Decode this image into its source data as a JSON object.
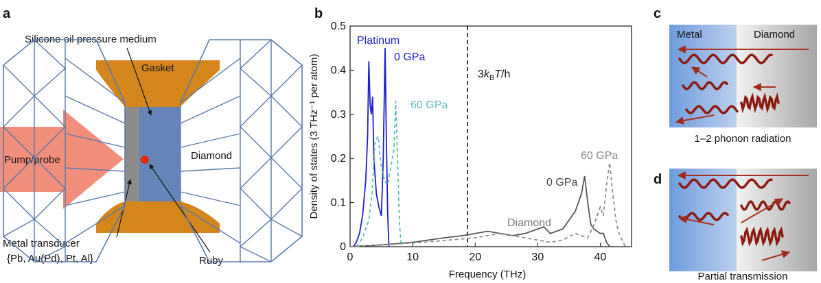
{
  "panel_labels": [
    "a",
    "b",
    "c",
    "d"
  ],
  "panel_a": {
    "medium": "Silicone oil pressure medium",
    "gasket": "Gasket",
    "beam": "Pump/probe",
    "anvil": "Diamond",
    "transducer": "Metal transducer",
    "transducer_options": "{Pb, Au(Pd), Pt, Al}",
    "ruby": "Ruby"
  },
  "panel_c": {
    "left": "Metal",
    "right": "Diamond",
    "caption": "1–2 phonon radiation"
  },
  "panel_d": {
    "caption": "Partial transmission"
  },
  "chart_data": {
    "type": "line",
    "xlabel": "Frequency (THz)",
    "ylabel": "Density of states (3 THz⁻¹ per atom)",
    "xlim": [
      0,
      45
    ],
    "ylim": [
      0,
      0.5
    ],
    "xticks": [
      0,
      10,
      20,
      30,
      40
    ],
    "yticks": [
      0,
      0.1,
      0.2,
      0.3,
      0.4,
      0.5
    ],
    "annotations": [
      "Platinum",
      "Diamond"
    ],
    "vline": {
      "x": 18.75,
      "label_parts": [
        "3",
        "k",
        "B",
        "T",
        "/h"
      ]
    },
    "series": [
      {
        "name": "0 GPa",
        "color": "#1f1fc8",
        "linestyle": "solid",
        "x": [
          0.5,
          1,
          1.5,
          2,
          2.5,
          2.8,
          3.0,
          3.2,
          3.4,
          3.6,
          3.8,
          4.2,
          4.6,
          5.0,
          5.3,
          5.6,
          5.8,
          6.0,
          6.2
        ],
        "values": [
          0,
          0.01,
          0.03,
          0.07,
          0.15,
          0.25,
          0.42,
          0.32,
          0.3,
          0.34,
          0.2,
          0.12,
          0.09,
          0.07,
          0.2,
          0.45,
          0.25,
          0.08,
          0
        ]
      },
      {
        "name": "60 GPa",
        "color": "#5cbcbc",
        "linestyle": "dashed",
        "x": [
          1,
          2,
          3,
          3.5,
          4,
          4.5,
          5,
          5.5,
          6,
          6.5,
          7,
          7.3,
          7.6,
          7.9,
          8.2
        ],
        "values": [
          0,
          0.02,
          0.06,
          0.12,
          0.24,
          0.25,
          0.18,
          0.15,
          0.14,
          0.18,
          0.22,
          0.33,
          0.2,
          0.05,
          0
        ]
      },
      {
        "name": "0 GPa",
        "color": "#555555",
        "linestyle": "solid",
        "x": [
          0,
          5,
          10,
          15,
          18,
          20,
          22,
          24,
          26,
          28,
          30,
          31,
          32,
          34,
          35,
          36,
          37,
          37.5,
          38,
          38.5,
          39,
          40,
          40.5,
          41,
          41.5
        ],
        "values": [
          0,
          0.004,
          0.01,
          0.02,
          0.025,
          0.03,
          0.035,
          0.03,
          0.025,
          0.03,
          0.04,
          0.045,
          0.03,
          0.04,
          0.06,
          0.08,
          0.12,
          0.16,
          0.1,
          0.05,
          0.04,
          0.03,
          0.03,
          0.01,
          0
        ]
      },
      {
        "name": "60 GPa",
        "color": "#8c8c8c",
        "linestyle": "dashed",
        "x": [
          0,
          10,
          20,
          24,
          28,
          32,
          34,
          36,
          38,
          39,
          40,
          40.5,
          41,
          41.5,
          42,
          42.5,
          43,
          44
        ],
        "values": [
          0,
          0.008,
          0.02,
          0.03,
          0.02,
          0.01,
          0.015,
          0.03,
          0.02,
          0.05,
          0.09,
          0.07,
          0.14,
          0.19,
          0.12,
          0.06,
          0.03,
          0
        ]
      }
    ]
  }
}
